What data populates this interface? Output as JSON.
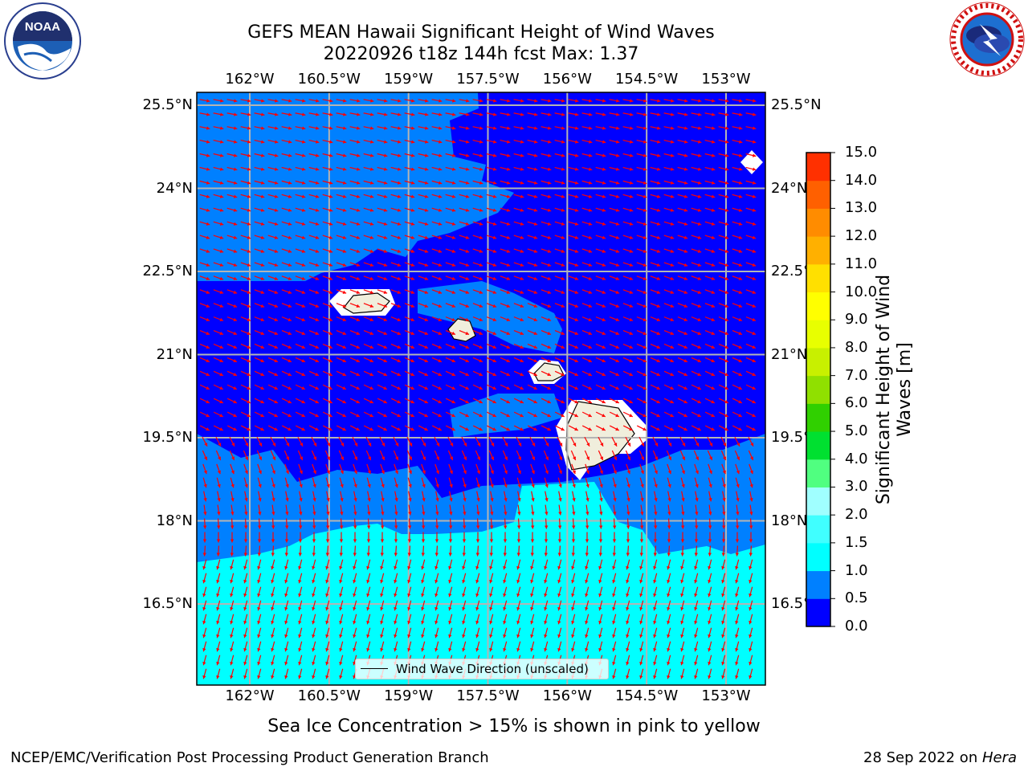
{
  "header": {
    "title_line1": "GEFS MEAN Hawaii Significant Height of Wind Waves",
    "title_line2": "20220926 t18z 144h fcst   Max: 1.37"
  },
  "logos": {
    "left": "noaa-logo",
    "right": "national-weather-service-logo"
  },
  "map": {
    "lon_ticks": [
      "162°W",
      "160.5°W",
      "159°W",
      "157.5°W",
      "156°W",
      "154.5°W",
      "153°W"
    ],
    "lon_values": [
      -162,
      -160.5,
      -159,
      -157.5,
      -156,
      -154.5,
      -153
    ],
    "lat_ticks": [
      "25.5°N",
      "24°N",
      "22.5°N",
      "21°N",
      "19.5°N",
      "18°N",
      "16.5°N"
    ],
    "lat_values": [
      25.5,
      24,
      22.5,
      21,
      19.5,
      18,
      16.5
    ],
    "lon_range": [
      -163,
      -152.2
    ],
    "lat_range": [
      15.3,
      25.8
    ],
    "ocean_color": "#0000ff",
    "band_color": "#0080ff",
    "cyan_color": "#00ffff",
    "land_color": "#f0eedc",
    "arrow_color": "#ff0000",
    "grid": true
  },
  "legend": {
    "label": "Wind Wave Direction (unscaled)"
  },
  "colorbar": {
    "label": "Significant Height of Wind Waves [m]",
    "tick_labels": [
      "0.0",
      "0.5",
      "1.0",
      "1.5",
      "2.0",
      "3.0",
      "4.0",
      "5.0",
      "6.0",
      "7.0",
      "8.0",
      "9.0",
      "10.0",
      "11.0",
      "12.0",
      "13.0",
      "14.0",
      "15.0"
    ],
    "colors": [
      "#0000ff",
      "#0080ff",
      "#00ffff",
      "#40ffff",
      "#a0ffff",
      "#50ff80",
      "#00e030",
      "#30d000",
      "#90e000",
      "#c8f000",
      "#e8ff00",
      "#ffff00",
      "#ffe000",
      "#ffb000",
      "#ff8c00",
      "#ff6000",
      "#ff3000"
    ]
  },
  "note": "Sea Ice Concentration > 15% is shown in pink to yellow",
  "footer": {
    "left": "NCEP/EMC/Verification Post Processing Product Generation Branch",
    "right_date": "28 Sep 2022 on ",
    "right_host": "Hera"
  }
}
